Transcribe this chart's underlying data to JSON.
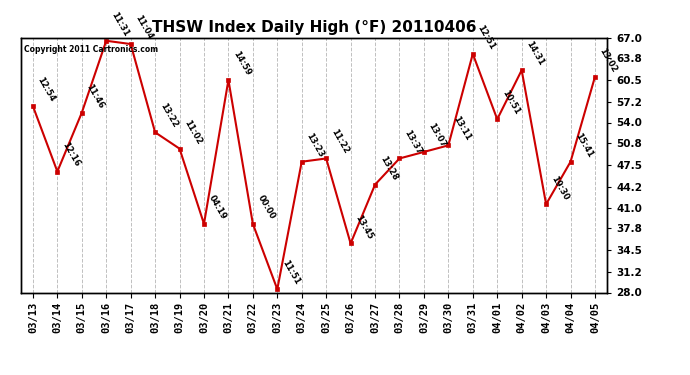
{
  "title": "THSW Index Daily High (°F) 20110406",
  "copyright": "Copyright 2011 Cartronics.com",
  "dates": [
    "03/13",
    "03/14",
    "03/15",
    "03/16",
    "03/17",
    "03/18",
    "03/19",
    "03/20",
    "03/21",
    "03/22",
    "03/23",
    "03/24",
    "03/25",
    "03/26",
    "03/27",
    "03/28",
    "03/29",
    "03/30",
    "03/31",
    "04/01",
    "04/02",
    "04/03",
    "04/04",
    "04/05"
  ],
  "values": [
    56.5,
    46.5,
    55.5,
    66.5,
    66.0,
    52.5,
    50.0,
    38.5,
    60.5,
    38.5,
    28.5,
    48.0,
    48.5,
    35.5,
    44.5,
    48.5,
    49.5,
    50.5,
    64.5,
    54.5,
    62.0,
    41.5,
    48.0,
    61.0
  ],
  "labels": [
    "12:54",
    "12:16",
    "11:46",
    "11:31",
    "11:04",
    "13:22",
    "11:02",
    "04:19",
    "14:59",
    "00:00",
    "11:51",
    "13:23",
    "11:22",
    "13:45",
    "13:28",
    "13:37",
    "13:07",
    "13:11",
    "12:51",
    "10:51",
    "14:31",
    "19:30",
    "15:41",
    "13:02"
  ],
  "ylim": [
    28.0,
    67.0
  ],
  "yticks": [
    28.0,
    31.2,
    34.5,
    37.8,
    41.0,
    44.2,
    47.5,
    50.8,
    54.0,
    57.2,
    60.5,
    63.8,
    67.0
  ],
  "line_color": "#cc0000",
  "marker_color": "#cc0000",
  "bg_color": "#ffffff",
  "grid_color": "#c0c0c0",
  "label_color": "#000000",
  "title_fontsize": 11,
  "label_fontsize": 6.0,
  "tick_fontsize": 7.5
}
